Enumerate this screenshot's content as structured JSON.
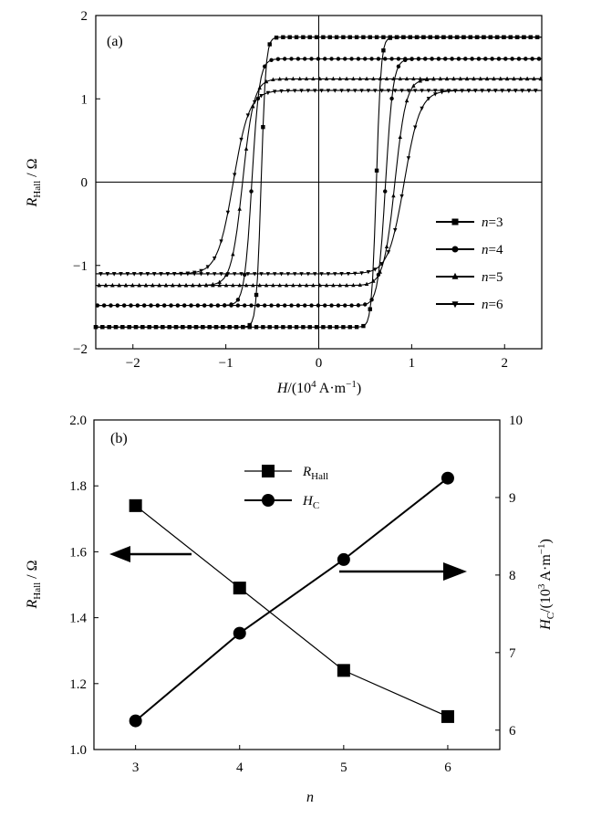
{
  "chart_data": [
    {
      "panel": "(a)",
      "type": "line",
      "xlabel": "H/(10⁴ A·m⁻¹)",
      "ylabel": "RHall / Ω",
      "xlim": [
        -2.4,
        2.4
      ],
      "ylim": [
        -2,
        2
      ],
      "xticks": [
        -2,
        -1,
        0,
        1,
        2
      ],
      "yticks": [
        -2,
        -1,
        0,
        1,
        2
      ],
      "legend_position": "right",
      "series": [
        {
          "name": "n=3",
          "marker": "square",
          "saturation": 1.74,
          "coercivity": 0.62,
          "width": 0.05
        },
        {
          "name": "n=4",
          "marker": "circle",
          "saturation": 1.48,
          "coercivity": 0.72,
          "width": 0.08
        },
        {
          "name": "n=5",
          "marker": "triangle-up",
          "saturation": 1.24,
          "coercivity": 0.82,
          "width": 0.12
        },
        {
          "name": "n=6",
          "marker": "triangle-down",
          "saturation": 1.1,
          "coercivity": 0.92,
          "width": 0.17
        }
      ]
    },
    {
      "panel": "(b)",
      "type": "line",
      "xlabel": "n",
      "ylabel": "RHall / Ω",
      "y2label": "HC/(10³ A·m⁻¹)",
      "x": [
        3,
        4,
        5,
        6
      ],
      "xlim": [
        2.6,
        6.5
      ],
      "ylim": [
        1.0,
        2.0
      ],
      "y2lim": [
        5.75,
        10
      ],
      "xticks": [
        3,
        4,
        5,
        6
      ],
      "yticks": [
        "1.0",
        "1.2",
        "1.4",
        "1.6",
        "1.8",
        "2.0"
      ],
      "y2ticks": [
        6,
        7,
        8,
        9,
        10
      ],
      "legend_position": "top-center",
      "series": [
        {
          "name": "RHall",
          "axis": "left",
          "marker": "square",
          "values": [
            1.74,
            1.49,
            1.24,
            1.1
          ]
        },
        {
          "name": "HC",
          "axis": "right",
          "marker": "circle",
          "values": [
            6.12,
            7.25,
            8.2,
            9.25
          ]
        }
      ],
      "arrows": [
        {
          "direction": "left",
          "points_to": "left axis"
        },
        {
          "direction": "right",
          "points_to": "right axis"
        }
      ]
    }
  ]
}
